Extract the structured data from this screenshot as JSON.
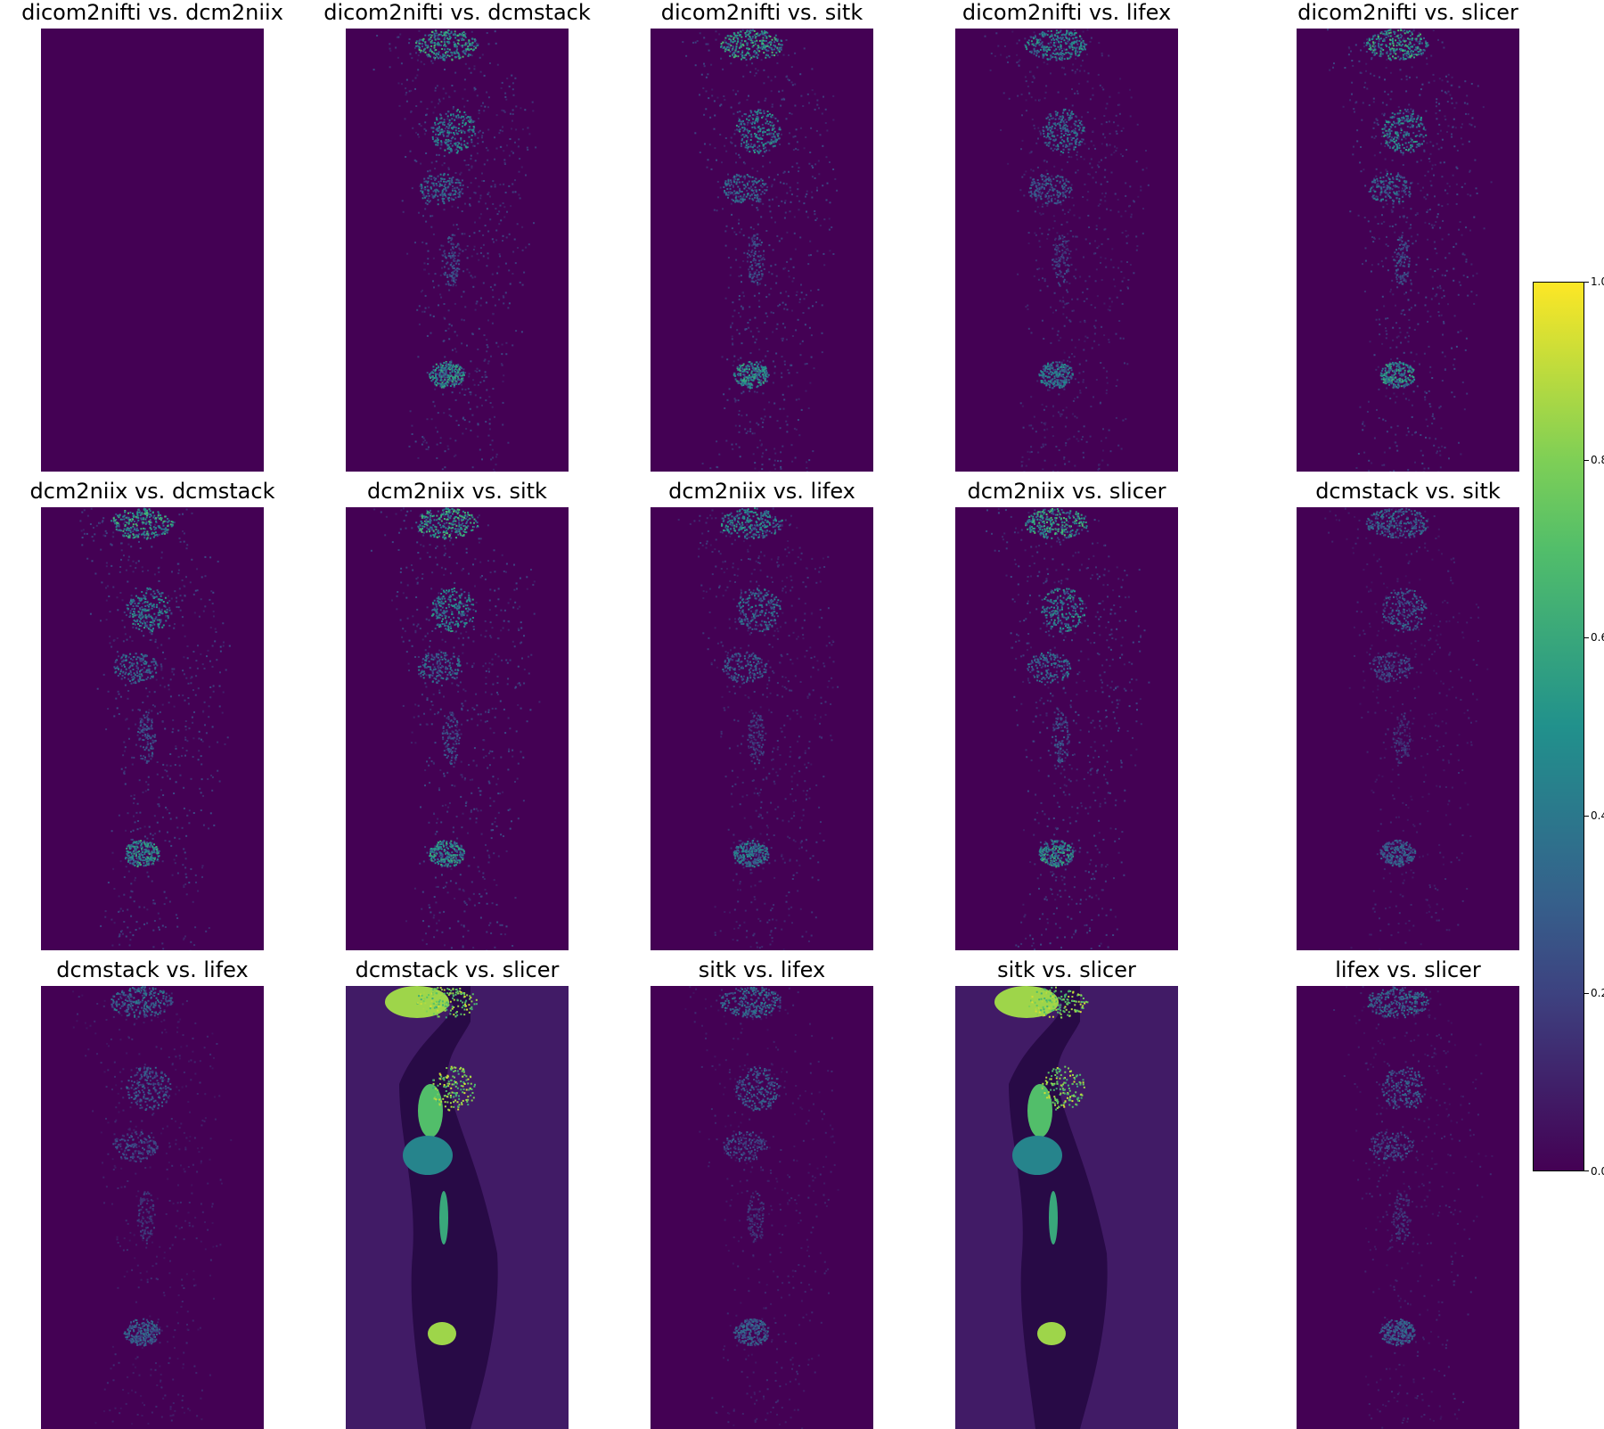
{
  "chart_data": {
    "type": "heatmap",
    "description_panels": "3x5 grid of normalized absolute-difference images (sagittal PET slice) between DICOM-to-NIfTI converters",
    "panels": [
      {
        "title": "dicom2nifti vs. dcm2niix",
        "pattern": "zero"
      },
      {
        "title": "dicom2nifti vs. dcmstack",
        "pattern": "noise"
      },
      {
        "title": "dicom2nifti vs. sitk",
        "pattern": "noise"
      },
      {
        "title": "dicom2nifti vs. lifex",
        "pattern": "noise_low"
      },
      {
        "title": "dicom2nifti vs. slicer",
        "pattern": "noise"
      },
      {
        "title": "dcm2niix vs. dcmstack",
        "pattern": "noise"
      },
      {
        "title": "dcm2niix vs. sitk",
        "pattern": "noise"
      },
      {
        "title": "dcm2niix vs. lifex",
        "pattern": "noise_low"
      },
      {
        "title": "dcm2niix vs. slicer",
        "pattern": "noise"
      },
      {
        "title": "dcmstack vs. sitk",
        "pattern": "noise_faint"
      },
      {
        "title": "dcmstack vs. lifex",
        "pattern": "noise_faint"
      },
      {
        "title": "dcmstack vs. slicer",
        "pattern": "anatomy"
      },
      {
        "title": "sitk vs. lifex",
        "pattern": "noise_faint"
      },
      {
        "title": "sitk vs. slicer",
        "pattern": "anatomy"
      },
      {
        "title": "lifex vs. slicer",
        "pattern": "noise_faint"
      }
    ],
    "colorbar": {
      "colormap": "viridis",
      "range": [
        0.0,
        1.0
      ],
      "ticks": [
        "0.0",
        "0.2",
        "0.4",
        "0.6",
        "0.8",
        "1.0"
      ]
    },
    "colors": {
      "viridis_0": "#440154",
      "viridis_25": "#3b528b",
      "viridis_50": "#21918c",
      "viridis_75": "#5ec962",
      "viridis_100": "#fde725"
    }
  }
}
